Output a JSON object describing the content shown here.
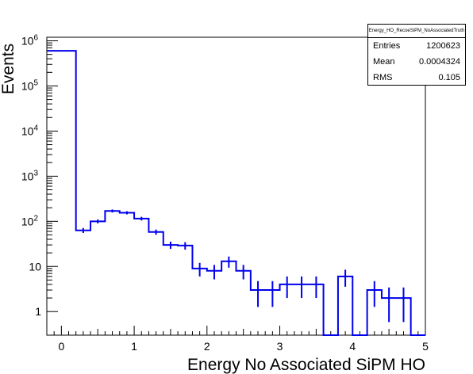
{
  "chart_data": {
    "type": "bar",
    "xlabel": "Energy No Associated SiPM HO",
    "ylabel": "Events",
    "xlim": [
      -0.2,
      5.0
    ],
    "ylim": [
      0.3,
      1200000
    ],
    "yscale": "log",
    "x_ticks": [
      "0",
      "1",
      "2",
      "3",
      "4",
      "5"
    ],
    "y_ticks": [
      {
        "base": "1",
        "exp": ""
      },
      {
        "base": "10",
        "exp": ""
      },
      {
        "base": "10",
        "exp": "2"
      },
      {
        "base": "10",
        "exp": "3"
      },
      {
        "base": "10",
        "exp": "4"
      },
      {
        "base": "10",
        "exp": "5"
      },
      {
        "base": "10",
        "exp": "6"
      }
    ],
    "bin_width": 0.2,
    "bin_low_edges": [
      -0.2,
      0.0,
      0.2,
      0.4,
      0.6,
      0.8,
      1.0,
      1.2,
      1.4,
      1.6,
      1.8,
      2.0,
      2.2,
      2.4,
      2.6,
      2.8,
      3.0,
      3.2,
      3.4,
      3.6,
      3.8,
      4.0,
      4.2,
      4.4,
      4.6,
      4.8
    ],
    "values": [
      600000,
      600000,
      63,
      100,
      170,
      155,
      115,
      58,
      30,
      29,
      9,
      8,
      13,
      8,
      3,
      3,
      4,
      4,
      4,
      0,
      6,
      0,
      3,
      2,
      2,
      0
    ],
    "series_color": "#0000ee",
    "stats": {
      "title": "Energy_HO_RecoeSiPM_NoAssociatedTruth",
      "entries_label": "Entries",
      "entries": "1200623",
      "mean_label": "Mean",
      "mean": "0.0004324",
      "rms_label": "RMS",
      "rms": "0.105"
    }
  }
}
